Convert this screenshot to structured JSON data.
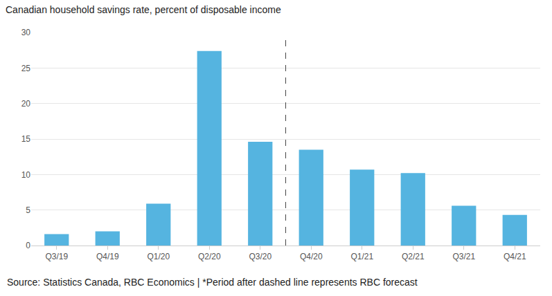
{
  "chart_data": {
    "type": "bar",
    "title": "Canadian household savings rate, percent of disposable income",
    "source": "Source: Statistics Canada, RBC Economics | *Period after dashed line represents RBC forecast",
    "categories": [
      "Q3/19",
      "Q4/19",
      "Q1/20",
      "Q2/20",
      "Q3/20",
      "Q4/20",
      "Q1/21",
      "Q2/21",
      "Q3/21",
      "Q4/21"
    ],
    "values": [
      1.6,
      2.0,
      5.9,
      27.4,
      14.6,
      13.5,
      10.7,
      10.2,
      5.6,
      4.3
    ],
    "forecast_start": "Q4/20",
    "color": "#55b4e0",
    "ylim": [
      0,
      30
    ],
    "yticks": [
      0,
      5,
      10,
      15,
      20,
      25,
      30
    ],
    "grid": true
  }
}
